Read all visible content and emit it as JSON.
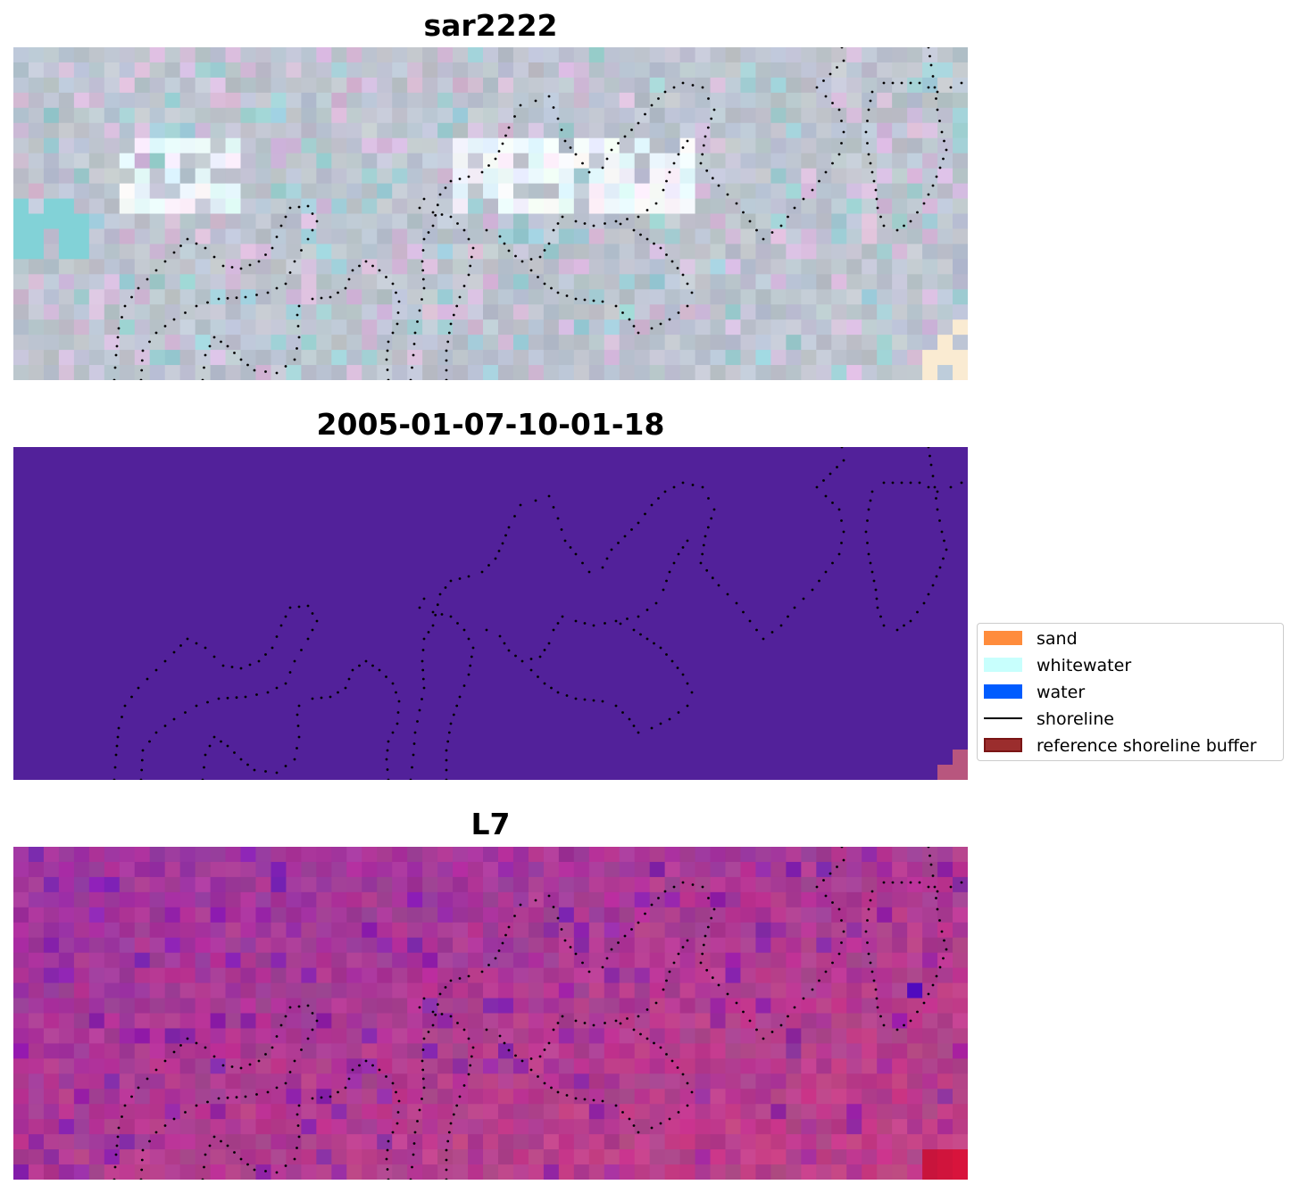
{
  "panels": [
    {
      "id": "sar",
      "title": "sar2222",
      "image_kind": "false-color SAR composite (pale blue-grey with cyan and pink pixels)"
    },
    {
      "id": "class",
      "title": "2005-01-07-10-01-18",
      "image_kind": "classification map, uniform purple"
    },
    {
      "id": "l7",
      "title": "L7",
      "image_kind": "magenta/purple index map"
    }
  ],
  "legend": {
    "items": [
      {
        "label": "sand",
        "kind": "patch",
        "color": "#ff8c3c"
      },
      {
        "label": "whitewater",
        "kind": "patch",
        "color": "#c8fffd"
      },
      {
        "label": "water",
        "kind": "patch",
        "color": "#005cff"
      },
      {
        "label": "shoreline",
        "kind": "line",
        "color": "#000000"
      },
      {
        "label": "reference shoreline buffer",
        "kind": "patch",
        "color": "#9b2d2d",
        "edge": "#7a1515"
      }
    ]
  },
  "colors": {
    "class_background": "#52219a",
    "class_corner": "#b8567e",
    "shoreline_dots": "#000000"
  }
}
